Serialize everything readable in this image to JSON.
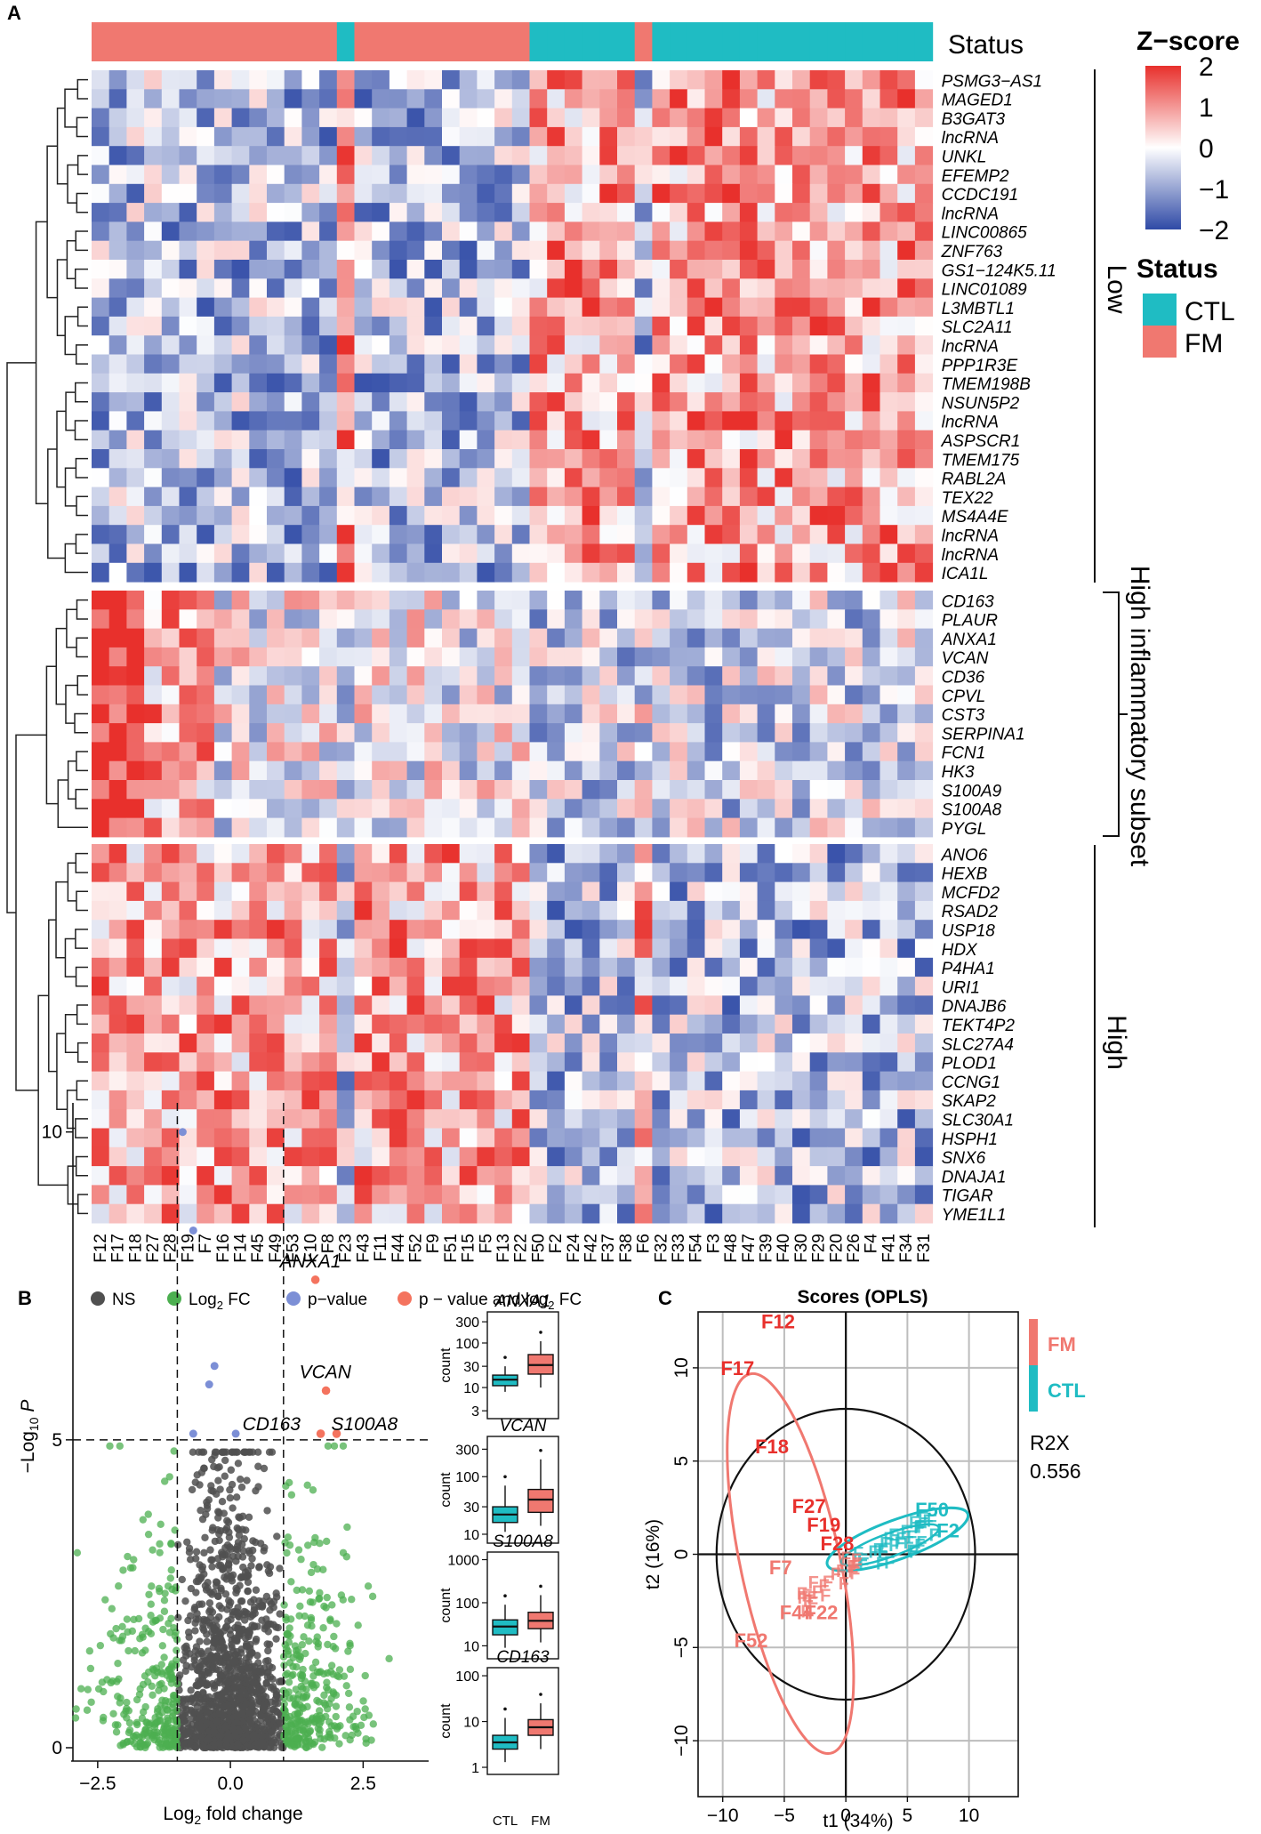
{
  "panels": {
    "a": "A",
    "b": "B",
    "c": "C"
  },
  "chart_data": [
    {
      "type": "heatmap",
      "title": "",
      "status_label": "Status",
      "samples": [
        "F12",
        "F17",
        "F18",
        "F27",
        "F28",
        "F19",
        "F7",
        "F16",
        "F14",
        "F45",
        "F49",
        "F53",
        "F10",
        "F8",
        "F23",
        "F43",
        "F11",
        "F44",
        "F52",
        "F9",
        "F51",
        "F15",
        "F5",
        "F13",
        "F22",
        "F50",
        "F2",
        "F24",
        "F42",
        "F37",
        "F38",
        "F6",
        "F32",
        "F33",
        "F54",
        "F3",
        "F48",
        "F47",
        "F39",
        "F40",
        "F30",
        "F29",
        "F20",
        "F26",
        "F4",
        "F41",
        "F34",
        "F31"
      ],
      "status": [
        "FM",
        "FM",
        "FM",
        "FM",
        "FM",
        "FM",
        "FM",
        "FM",
        "FM",
        "FM",
        "FM",
        "FM",
        "FM",
        "FM",
        "CTL",
        "FM",
        "FM",
        "FM",
        "FM",
        "FM",
        "FM",
        "FM",
        "FM",
        "FM",
        "FM",
        "CTL",
        "CTL",
        "CTL",
        "CTL",
        "CTL",
        "CTL",
        "FM",
        "CTL",
        "CTL",
        "CTL",
        "CTL",
        "CTL",
        "CTL",
        "CTL",
        "CTL",
        "CTL",
        "CTL",
        "CTL",
        "CTL",
        "CTL",
        "CTL",
        "CTL",
        "CTL"
      ],
      "gene_blocks": [
        {
          "name": "Low",
          "genes": [
            "PSMG3−AS1",
            "MAGED1",
            "B3GAT3",
            "lncRNA",
            "UNKL",
            "EFEMP2",
            "CCDC191",
            "lncRNA",
            "LINC00865",
            "ZNF763",
            "GS1−124K5.11",
            "LINC01089",
            "L3MBTL1",
            "SLC2A11",
            "lncRNA",
            "PPP1R3E",
            "TMEM198B",
            "NSUN5P2",
            "lncRNA",
            "ASPSCR1",
            "TMEM175",
            "RABL2A",
            "TEX22",
            "MS4A4E",
            "lncRNA",
            "lncRNA",
            "ICA1L"
          ]
        },
        {
          "name": "High inflammatory subset",
          "genes": [
            "CD163",
            "PLAUR",
            "ANXA1",
            "VCAN",
            "CD36",
            "CPVL",
            "CST3",
            "SERPINA1",
            "FCN1",
            "HK3",
            "S100A9",
            "S100A8",
            "PYGL"
          ]
        },
        {
          "name": "High",
          "genes": [
            "ANO6",
            "HEXB",
            "MCFD2",
            "RSAD2",
            "USP18",
            "HDX",
            "P4HA1",
            "URI1",
            "DNAJB6",
            "TEKT4P2",
            "SLC27A4",
            "PLOD1",
            "CCNG1",
            "SKAP2",
            "SLC30A1",
            "HSPH1",
            "SNX6",
            "DNAJA1",
            "TIGAR",
            "YME1L1"
          ]
        }
      ],
      "legend": {
        "zscore_title": "Z−score",
        "zscore_ticks": [
          "2",
          "1",
          "0",
          "−1",
          "−2"
        ],
        "zscore_range": [
          -2,
          2
        ],
        "status_title": "Status",
        "status_levels": [
          {
            "label": "CTL",
            "color": "#1fbcc3"
          },
          {
            "label": "FM",
            "color": "#f07870"
          }
        ]
      },
      "colors": {
        "high": "#e8302c",
        "mid": "#ffffff",
        "low": "#2f4aa6"
      }
    },
    {
      "type": "scatter",
      "subtype": "volcano",
      "xlabel_main": "Log",
      "xlabel_sub": "2",
      "xlabel_tail": " fold change",
      "ylabel_main": "−Log",
      "ylabel_sub": "10",
      "ylabel_p": "P",
      "xlim": [
        -3,
        3.7
      ],
      "ylim": [
        0,
        10.4
      ],
      "xticks": [
        -2.5,
        0.0,
        2.5
      ],
      "xtick_labels": [
        "−2.5",
        "0.0",
        "2.5"
      ],
      "yticks": [
        0,
        5,
        10
      ],
      "ytick_labels": [
        "0",
        "5",
        "10"
      ],
      "fc_cutoff": 1,
      "p_cutoff": 5,
      "legend": [
        {
          "label": "NS",
          "color": "#505050"
        },
        {
          "label": "Log",
          "sub": "2",
          "tail": " FC",
          "color": "#4caf50"
        },
        {
          "label": "p−value",
          "color": "#7c8fd6"
        },
        {
          "label": "p − value and log",
          "sub": "2",
          "tail": " FC",
          "color": "#f4735e"
        }
      ],
      "labeled_points": [
        {
          "label": "ANXA1",
          "x": 1.6,
          "y": 7.6
        },
        {
          "label": "VCAN",
          "x": 1.8,
          "y": 5.8
        },
        {
          "label": "CD163",
          "x": 1.7,
          "y": 5.1
        },
        {
          "label": "S100A8",
          "x": 2.0,
          "y": 5.1
        }
      ],
      "blue_points": [
        {
          "x": -0.9,
          "y": 10.0
        },
        {
          "x": -0.7,
          "y": 8.4
        },
        {
          "x": -0.3,
          "y": 6.2
        },
        {
          "x": -0.4,
          "y": 5.9
        },
        {
          "x": -0.7,
          "y": 5.1
        },
        {
          "x": 0.1,
          "y": 5.1
        }
      ]
    },
    {
      "type": "boxplot",
      "groups": [
        "CTL",
        "FM"
      ],
      "group_colors": [
        "#1fbcc3",
        "#f07870"
      ],
      "ylabel": "count",
      "panels": [
        {
          "gene": "ANXA1",
          "yticks": [
            "300",
            "100",
            "30",
            "10",
            "3"
          ],
          "log_range": [
            2,
            500
          ],
          "CTL": {
            "q1": 11,
            "median": 15,
            "q3": 19,
            "low": 8,
            "high": 30
          },
          "FM": {
            "q1": 20,
            "median": 32,
            "q3": 55,
            "low": 10,
            "high": 110
          }
        },
        {
          "gene": "VCAN",
          "yticks": [
            "300",
            "100",
            "30",
            "10"
          ],
          "log_range": [
            7,
            500
          ],
          "CTL": {
            "q1": 16,
            "median": 22,
            "q3": 30,
            "low": 11,
            "high": 70
          },
          "FM": {
            "q1": 24,
            "median": 40,
            "q3": 60,
            "low": 14,
            "high": 200
          }
        },
        {
          "gene": "S100A8",
          "yticks": [
            "1000",
            "100",
            "10"
          ],
          "log_range": [
            5,
            1500
          ],
          "CTL": {
            "q1": 18,
            "median": 28,
            "q3": 40,
            "low": 9,
            "high": 90
          },
          "FM": {
            "q1": 25,
            "median": 38,
            "q3": 60,
            "low": 12,
            "high": 150
          }
        },
        {
          "gene": "CD163",
          "yticks": [
            "100",
            "10",
            "1"
          ],
          "log_range": [
            0.7,
            150
          ],
          "CTL": {
            "q1": 2.5,
            "median": 3.5,
            "q3": 5,
            "low": 1.3,
            "high": 12
          },
          "FM": {
            "q1": 5,
            "median": 7.5,
            "q3": 11,
            "low": 2.5,
            "high": 25
          }
        }
      ]
    },
    {
      "type": "scatter",
      "subtype": "opls-scores",
      "title": "Scores (OPLS)",
      "xlabel": "t1 (34%)",
      "ylabel": "t2 (16%)",
      "xlim": [
        -12,
        14
      ],
      "ylim": [
        -13,
        13
      ],
      "xticks": [
        -10,
        -5,
        0,
        5,
        10
      ],
      "xtick_labels": [
        "−10",
        "−5",
        "0",
        "5",
        "10"
      ],
      "yticks": [
        -10,
        -5,
        0,
        5,
        10
      ],
      "ytick_labels": [
        "−10",
        "−5",
        "0",
        "5",
        "10"
      ],
      "r2x_label": "R2X",
      "r2x_value": "0.556",
      "legend": [
        {
          "label": "FM",
          "color": "#f07870"
        },
        {
          "label": "CTL",
          "color": "#1fbcc3"
        }
      ],
      "labeled_points": [
        {
          "label": "F12",
          "x": -5.5,
          "y": 12.5,
          "group": "FM"
        },
        {
          "label": "F17",
          "x": -8.8,
          "y": 10.0,
          "group": "FM"
        },
        {
          "label": "F18",
          "x": -6.0,
          "y": 5.8,
          "group": "FM"
        },
        {
          "label": "F27",
          "x": -3.0,
          "y": 2.6,
          "group": "FM"
        },
        {
          "label": "F19",
          "x": -1.8,
          "y": 1.6,
          "group": "FM"
        },
        {
          "label": "F28",
          "x": -0.7,
          "y": 0.6,
          "group": "FM"
        },
        {
          "label": "F7",
          "x": -5.3,
          "y": -0.7,
          "group": "FM"
        },
        {
          "label": "F44",
          "x": -4.0,
          "y": -3.1,
          "group": "FM"
        },
        {
          "label": "F22",
          "x": -2.0,
          "y": -3.1,
          "group": "FM"
        },
        {
          "label": "F52",
          "x": -7.7,
          "y": -4.6,
          "group": "FM"
        },
        {
          "label": "F50",
          "x": 7.0,
          "y": 2.4,
          "group": "CTL"
        },
        {
          "label": "F2",
          "x": 8.3,
          "y": 1.3,
          "group": "CTL"
        }
      ]
    }
  ]
}
